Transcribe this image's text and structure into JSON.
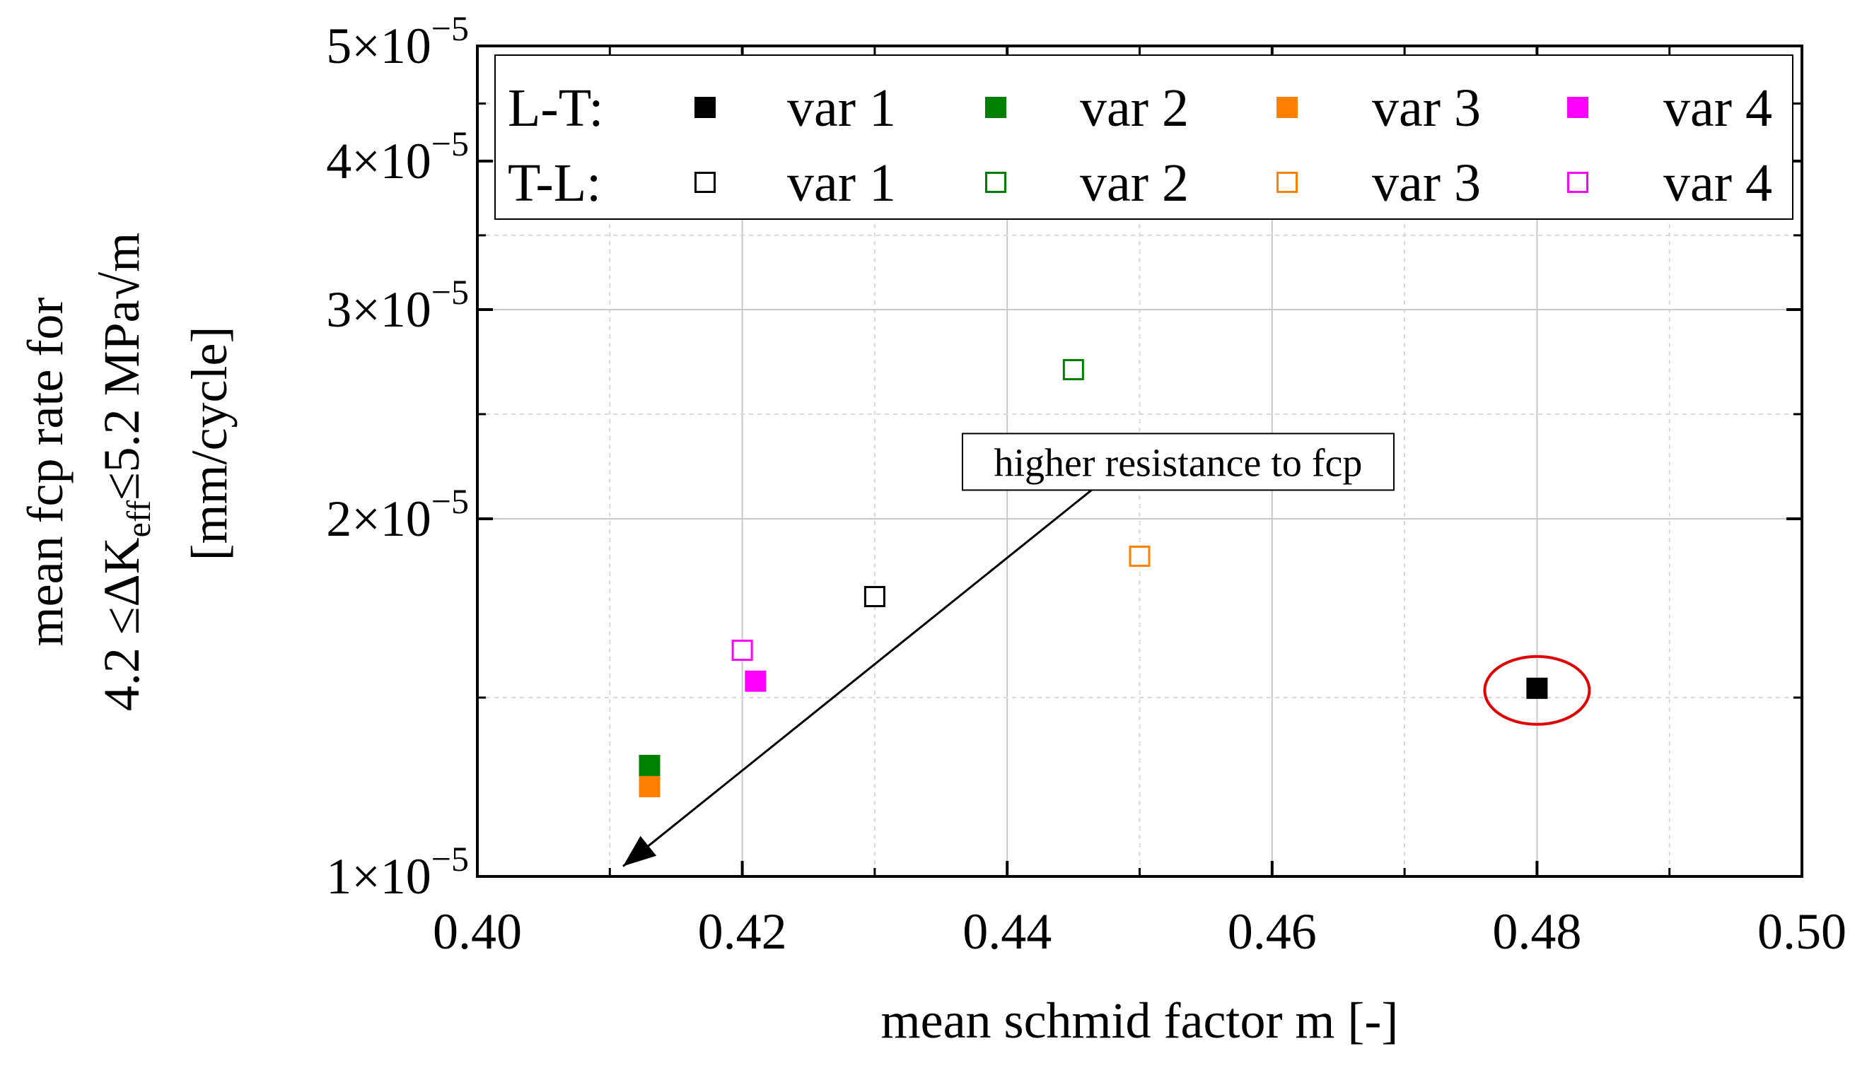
{
  "chart_data": {
    "type": "scatter",
    "xlabel": "mean schmid factor m [-]",
    "ylabel_line1": "mean fcp rate for",
    "ylabel_line2_pre": "4.2 ≤ΔK",
    "ylabel_line2_sub": "eff",
    "ylabel_line2_post": "≤5.2 MPa√m",
    "ylabel_line3": "[mm/cycle]",
    "xlim": [
      0.4,
      0.5
    ],
    "ylim": [
      1e-05,
      5e-05
    ],
    "yscale": "log",
    "grid": true,
    "legend_position": "top",
    "x_ticks": [
      {
        "value": 0.4,
        "label": "0.40"
      },
      {
        "value": 0.42,
        "label": "0.42"
      },
      {
        "value": 0.44,
        "label": "0.44"
      },
      {
        "value": 0.46,
        "label": "0.46"
      },
      {
        "value": 0.48,
        "label": "0.48"
      },
      {
        "value": 0.5,
        "label": "0.50"
      }
    ],
    "y_ticks": [
      {
        "value": 1e-05,
        "mantissa": "1×10",
        "exponent": "−5"
      },
      {
        "value": 2e-05,
        "mantissa": "2×10",
        "exponent": "−5"
      },
      {
        "value": 3e-05,
        "mantissa": "3×10",
        "exponent": "−5"
      },
      {
        "value": 4e-05,
        "mantissa": "4×10",
        "exponent": "−5"
      },
      {
        "value": 5e-05,
        "mantissa": "5×10",
        "exponent": "−5"
      }
    ],
    "legend": {
      "groups": [
        {
          "label": "L-T:",
          "filled": true
        },
        {
          "label": "T-L:",
          "filled": false
        }
      ],
      "variants": [
        {
          "name": "var 1",
          "color": "#000000"
        },
        {
          "name": "var 2",
          "color": "#008000"
        },
        {
          "name": "var 3",
          "color": "#ff8000"
        },
        {
          "name": "var 4",
          "color": "#ff00ff"
        }
      ]
    },
    "series": [
      {
        "group": "L-T",
        "variant": "var 1",
        "filled": true,
        "color": "#000000",
        "x": 0.48,
        "y": 1.44e-05
      },
      {
        "group": "L-T",
        "variant": "var 2",
        "filled": true,
        "color": "#008000",
        "x": 0.413,
        "y": 1.24e-05
      },
      {
        "group": "L-T",
        "variant": "var 3",
        "filled": true,
        "color": "#ff8000",
        "x": 0.413,
        "y": 1.19e-05
      },
      {
        "group": "L-T",
        "variant": "var 4",
        "filled": true,
        "color": "#ff00ff",
        "x": 0.421,
        "y": 1.46e-05
      },
      {
        "group": "T-L",
        "variant": "var 1",
        "filled": false,
        "color": "#000000",
        "x": 0.43,
        "y": 1.72e-05
      },
      {
        "group": "T-L",
        "variant": "var 2",
        "filled": false,
        "color": "#008000",
        "x": 0.445,
        "y": 2.67e-05
      },
      {
        "group": "T-L",
        "variant": "var 3",
        "filled": false,
        "color": "#ff8000",
        "x": 0.45,
        "y": 1.86e-05
      },
      {
        "group": "T-L",
        "variant": "var 4",
        "filled": false,
        "color": "#ff00ff",
        "x": 0.42,
        "y": 1.55e-05
      }
    ],
    "annotations": [
      {
        "text": "higher resistance to fcp",
        "arrow_from": [
          0.4465,
          2.12e-05
        ],
        "arrow_to": [
          0.411,
          1.02e-05
        ]
      }
    ],
    "highlight": {
      "x": 0.48,
      "y": 1.44e-05,
      "color": "#e00000"
    }
  }
}
